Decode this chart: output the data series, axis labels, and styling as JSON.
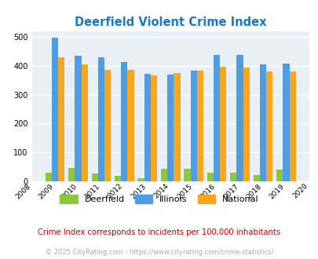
{
  "title": "Deerfield Violent Crime Index",
  "title_color": "#1a7abf",
  "years": [
    2009,
    2010,
    2011,
    2012,
    2013,
    2014,
    2015,
    2016,
    2017,
    2018,
    2019
  ],
  "deerfield": [
    30,
    47,
    27,
    18,
    12,
    43,
    43,
    30,
    30,
    22,
    40
  ],
  "illinois": [
    498,
    435,
    428,
    414,
    372,
    370,
    384,
    438,
    438,
    405,
    408
  ],
  "national": [
    430,
    405,
    387,
    387,
    367,
    374,
    383,
    397,
    394,
    381,
    379
  ],
  "color_deerfield": "#8dc63f",
  "color_illinois": "#4d9de0",
  "color_national": "#f5a623",
  "xlim": [
    2008,
    2020
  ],
  "ylim": [
    0,
    520
  ],
  "yticks": [
    0,
    100,
    200,
    300,
    400,
    500
  ],
  "bg_color": "#e8f0f5",
  "grid_color": "#ffffff",
  "subtitle": "Crime Index corresponds to incidents per 100,000 inhabitants",
  "subtitle_color": "#cc0000",
  "footer": "© 2025 CityRating.com - https://www.cityrating.com/crime-statistics/",
  "footer_color": "#aaaaaa",
  "legend_labels": [
    "Deerfield",
    "Illinois",
    "National"
  ],
  "bar_width": 0.28
}
